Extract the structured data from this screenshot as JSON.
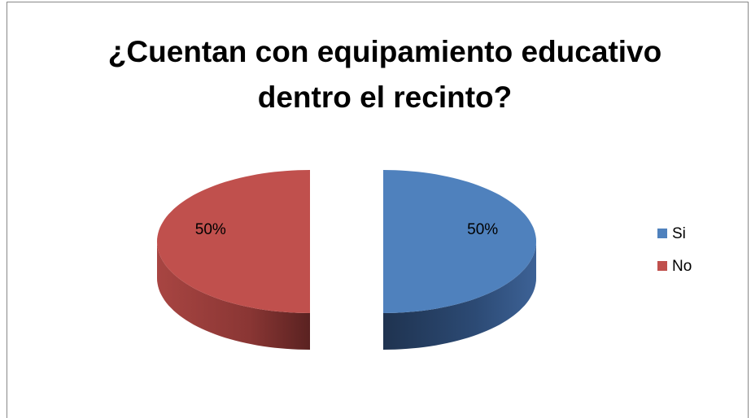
{
  "chart_data": {
    "type": "pie",
    "three_d": true,
    "exploded": true,
    "title": "¿Cuentan con equipamiento educativo dentro el recinto?",
    "categories": [
      "Si",
      "No"
    ],
    "values": [
      50,
      50
    ],
    "value_labels": [
      "50%",
      "50%"
    ],
    "colors": [
      "#4f81bd",
      "#c0504d"
    ],
    "legend": "right"
  }
}
